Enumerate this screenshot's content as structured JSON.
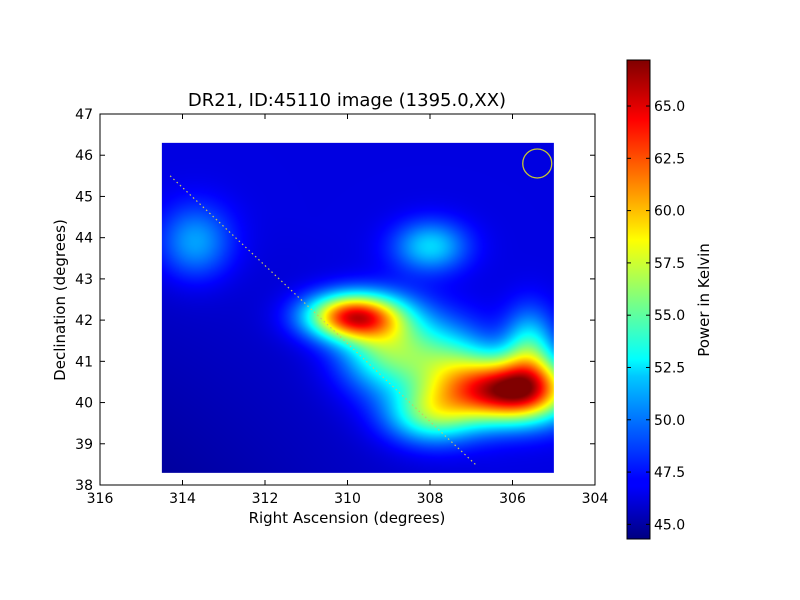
{
  "chart_data": {
    "type": "heatmap",
    "title": "DR21, ID:45110 image (1395.0,XX)",
    "xlabel": "Right Ascension (degrees)",
    "ylabel": "Declination (degrees)",
    "xlim": [
      316,
      304
    ],
    "ylim": [
      38,
      47
    ],
    "x_ticks": [
      "316",
      "314",
      "312",
      "310",
      "308",
      "306",
      "304"
    ],
    "y_ticks": [
      "38",
      "39",
      "40",
      "41",
      "42",
      "43",
      "44",
      "45",
      "46",
      "47"
    ],
    "colormap": "jet",
    "colorbar": {
      "label": "Power in Kelvin",
      "range": [
        44.3,
        67.2
      ],
      "ticks": [
        "45.0",
        "47.5",
        "50.0",
        "52.5",
        "55.0",
        "57.5",
        "60.0",
        "62.5",
        "65.0"
      ]
    },
    "image_extent": {
      "ra": [
        314.5,
        305.0
      ],
      "dec": [
        38.3,
        46.3
      ]
    },
    "background_level": 46.5,
    "sources": [
      {
        "ra": 306.0,
        "dec": 40.3,
        "peak": 66.5
      },
      {
        "ra": 309.9,
        "dec": 42.1,
        "peak": 63.0
      },
      {
        "ra": 313.7,
        "dec": 43.9,
        "peak": 51.0
      },
      {
        "ra": 308.0,
        "dec": 43.8,
        "peak": 52.0
      },
      {
        "ra": 309.0,
        "dec": 41.3,
        "peak": 55.5
      },
      {
        "ra": 308.0,
        "dec": 39.7,
        "peak": 54.0
      },
      {
        "ra": 305.6,
        "dec": 41.3,
        "peak": 53.0
      },
      {
        "ra": 307.5,
        "dec": 40.8,
        "peak": 53.5
      }
    ],
    "dotted_line": {
      "ra": [
        314.3,
        306.9
      ],
      "dec": [
        45.5,
        38.5
      ],
      "color": "#c8c864"
    },
    "beam_circle": {
      "ra": 305.4,
      "dec": 45.8,
      "color": "#c8c832"
    }
  }
}
